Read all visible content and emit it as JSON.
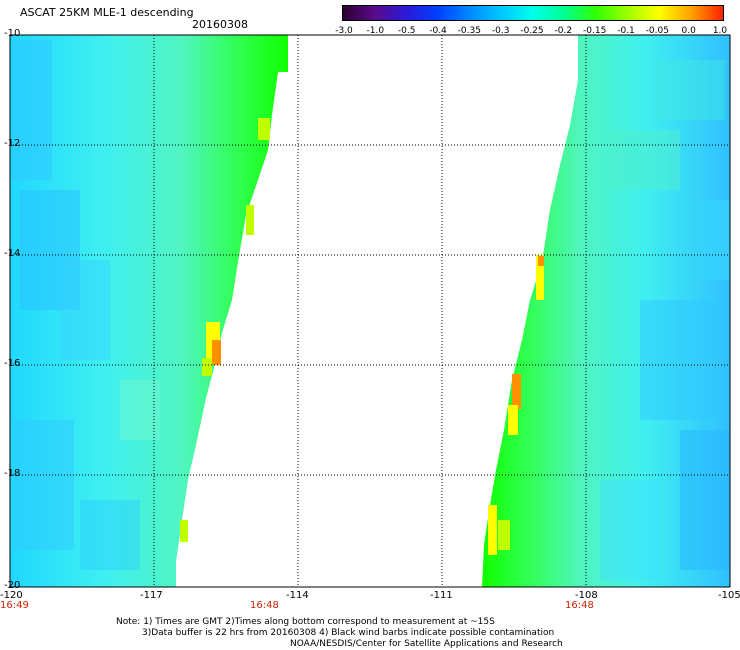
{
  "header": {
    "title": "ASCAT 25KM MLE-1 descending",
    "date": "20160308"
  },
  "colorbar": {
    "labels": [
      "-3.0",
      "-1.0",
      "-0.5",
      "-0.4",
      "-0.35",
      "-0.3",
      "-0.25",
      "-0.2",
      "-0.15",
      "-0.1",
      "-0.05",
      "0.0",
      "1.0"
    ],
    "colors": [
      "#2a0030",
      "#5a0a8a",
      "#2a1ad8",
      "#0040ff",
      "#0088ff",
      "#00c8ff",
      "#00ffea",
      "#00ff90",
      "#30ff00",
      "#a0ff00",
      "#ffff00",
      "#ffa000",
      "#ff2000"
    ]
  },
  "map": {
    "lon_labels": [
      "-120",
      "-117",
      "-114",
      "-111",
      "-108",
      "-105"
    ],
    "lat_labels": [
      "-10",
      "-12",
      "-14",
      "-16",
      "-18",
      "-20"
    ],
    "time_labels": [
      "16:49",
      "16:48",
      "16:48"
    ],
    "field_colors": {
      "cyan": "#40f0f0",
      "cyan_dark": "#20d8ff",
      "blue": "#30c0ff",
      "aqua_green": "#50f5c0",
      "green": "#30ff50",
      "bright_green": "#10ff00",
      "yellow_green": "#c0ff00",
      "yellow": "#ffff00",
      "orange": "#ff9000"
    }
  },
  "notes": {
    "line1": "Note: 1) Times are GMT 2)Times along bottom correspond to measurement at ~15S",
    "line2": "3)Data buffer is 22 hrs from 20160308 4) Black wind barbs indicate possible contamination",
    "line3": "NOAA/NESDIS/Center for Satellite Applications and Research"
  }
}
